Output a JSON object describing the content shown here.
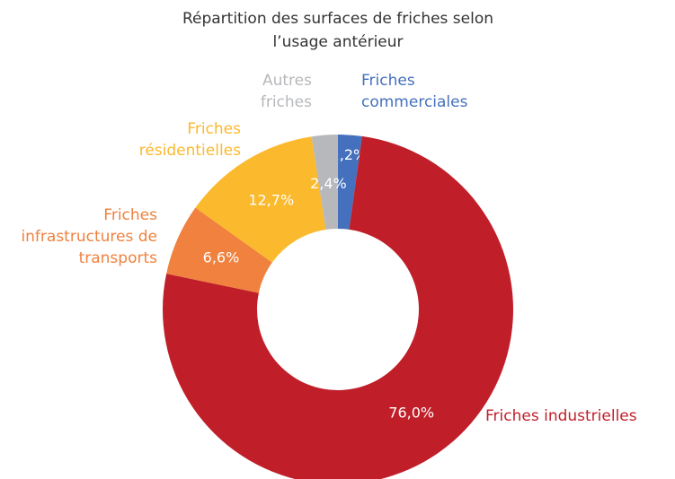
{
  "chart_data": {
    "type": "donut",
    "title": "Répartition des surfaces de friches selon l’usage antérieur",
    "categories": [
      "Friches commerciales",
      "Friches industrielles",
      "Friches infrastructures de transports",
      "Friches résidentielles",
      "Autres friches"
    ],
    "values": [
      2.2,
      76.0,
      6.6,
      12.7,
      2.4
    ],
    "value_labels": [
      "2,2%",
      "76,0%",
      "6,6%",
      "12,7%",
      "2,4%"
    ],
    "colors": [
      "#4470bd",
      "#c01f2a",
      "#f0813e",
      "#fbb92d",
      "#b6b8bb"
    ]
  }
}
